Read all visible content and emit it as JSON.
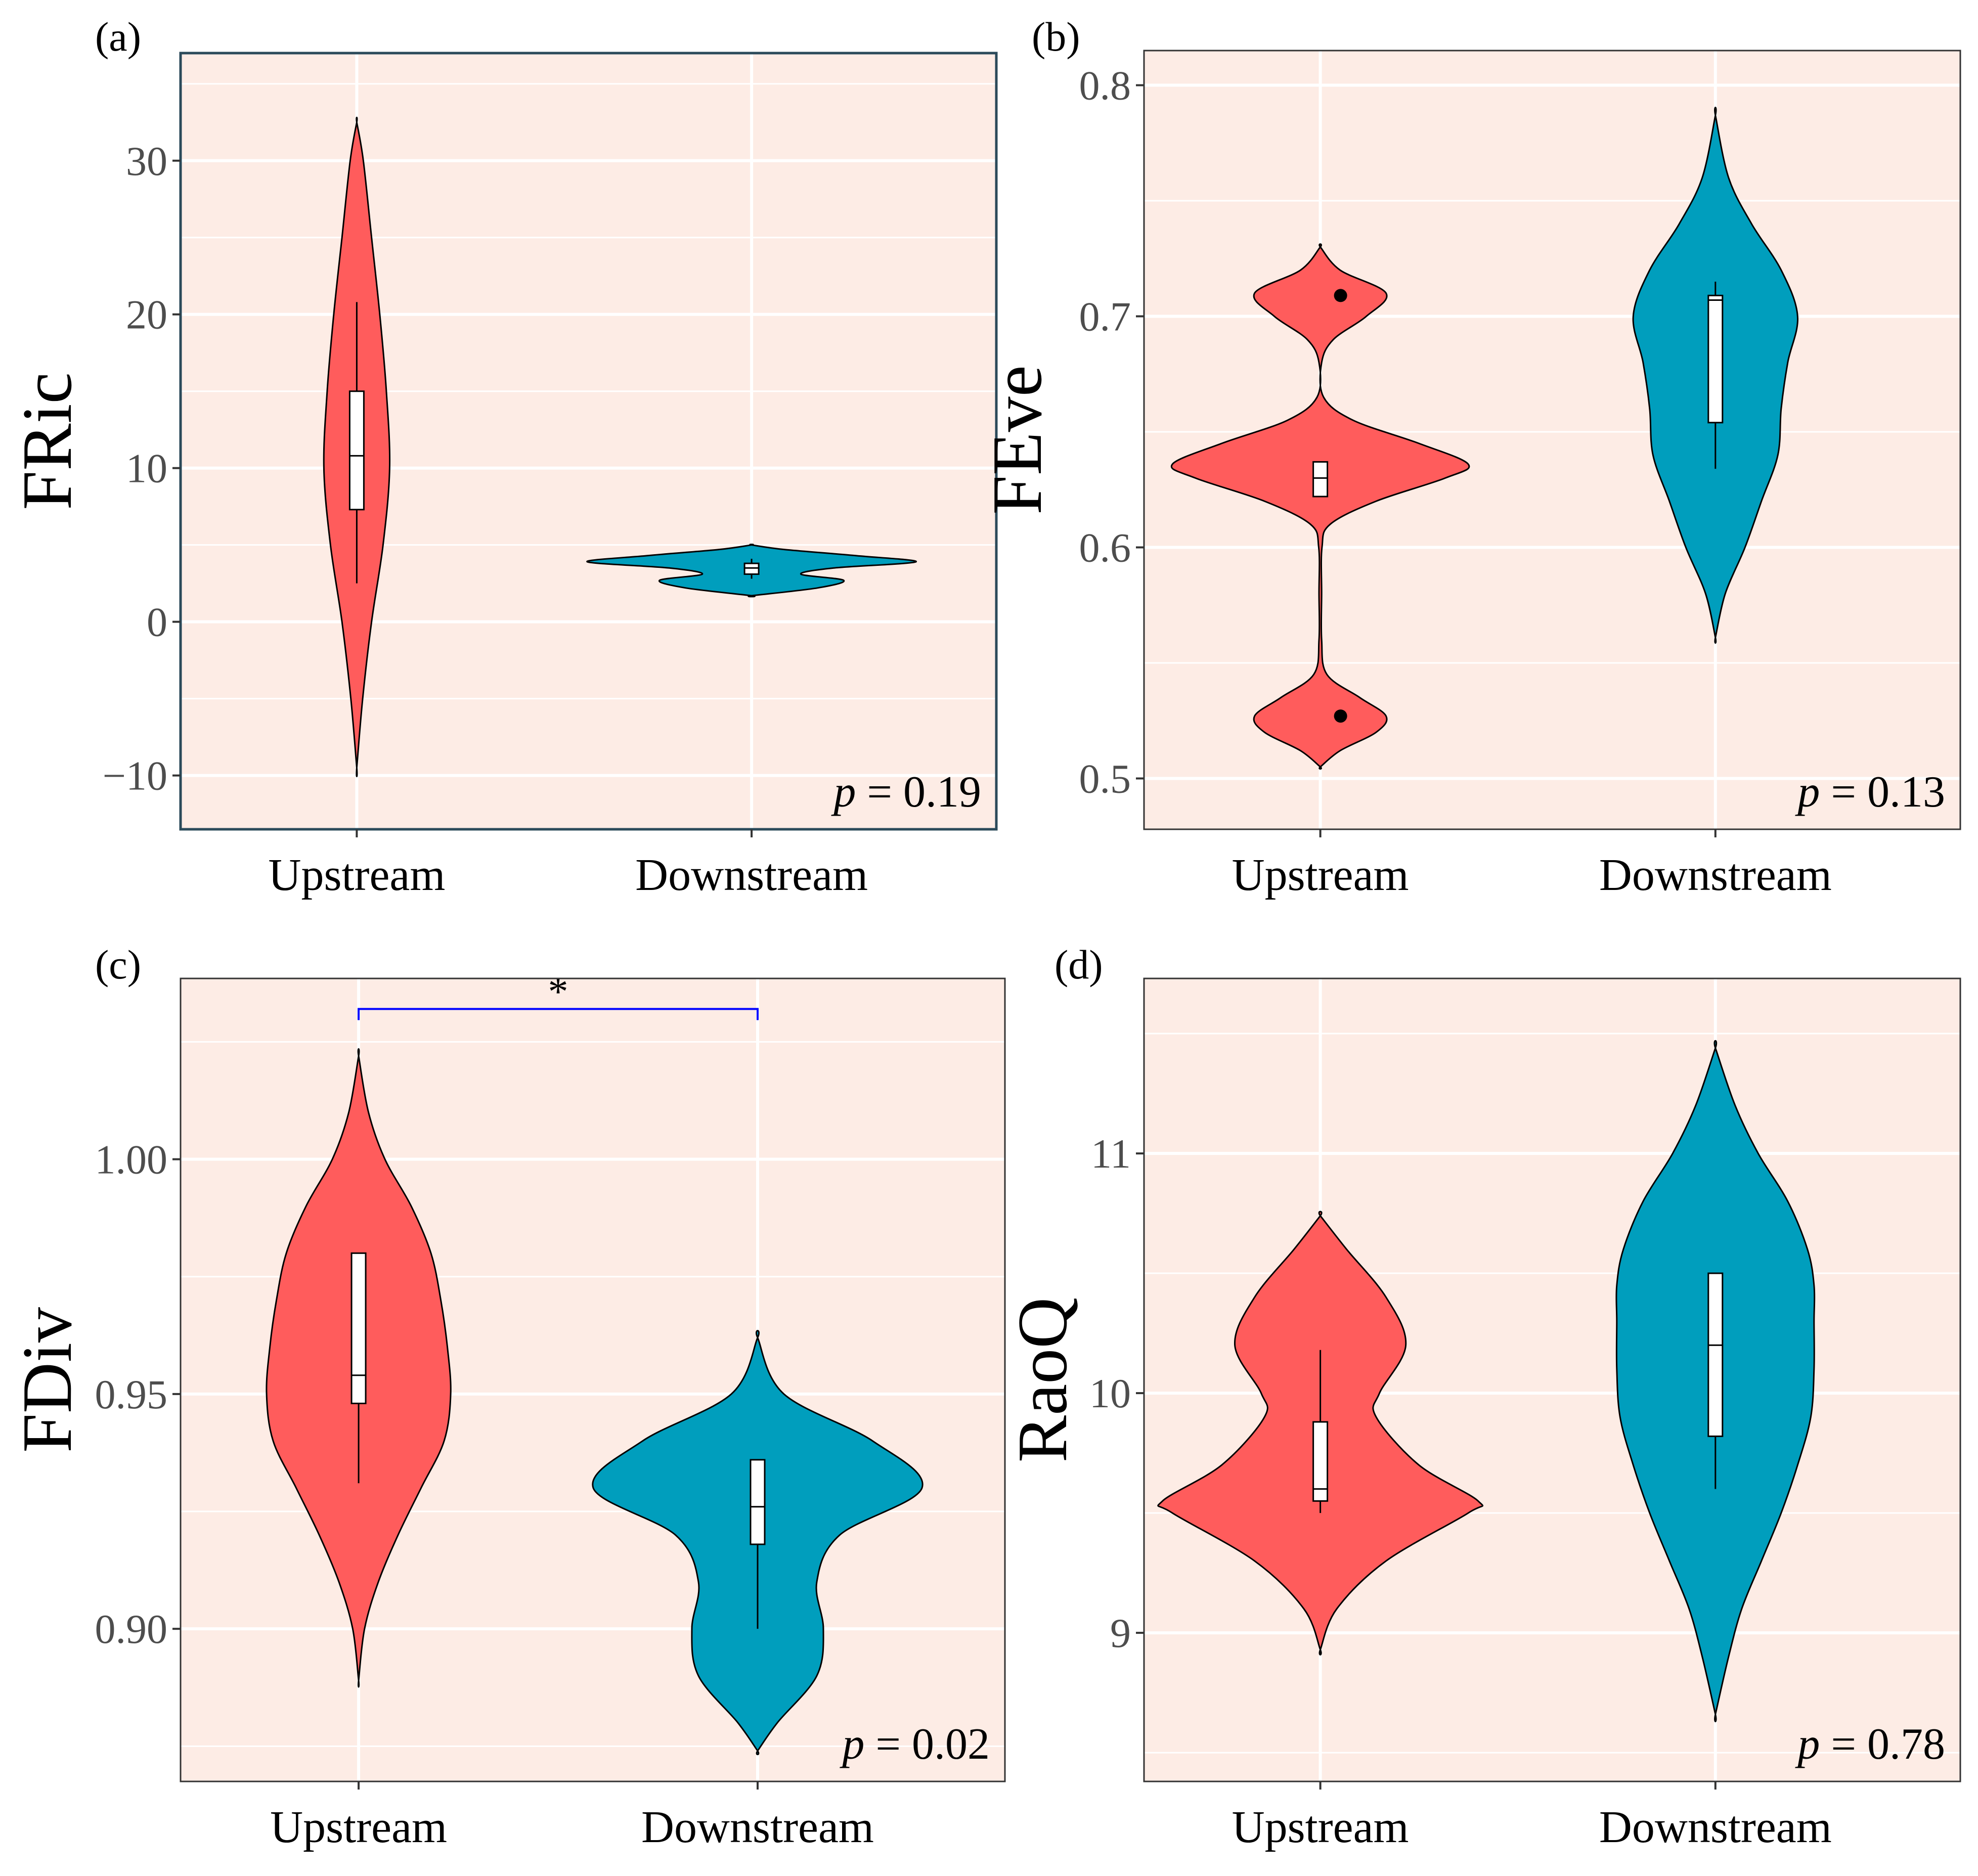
{
  "colors": {
    "upstream": "#ff5c5c",
    "downstream": "#009ebd",
    "panel_bg": "#fdece5",
    "grid": "#ffffff",
    "bracket": "#0000ff",
    "outline": "#000000"
  },
  "chart_data": [
    {
      "type": "violin",
      "panel_label": "(a)",
      "ylabel": "FRic",
      "categories": [
        "Upstream",
        "Downstream"
      ],
      "ylim": [
        -13.5,
        37
      ],
      "yticks": [
        -10,
        0,
        10,
        20,
        30
      ],
      "ytick_labels": [
        "−10",
        "0",
        "10",
        "20",
        "30"
      ],
      "p_prefix": "p",
      "p_value": "= 0.19",
      "significance": null,
      "series": [
        {
          "name": "Upstream",
          "violin_y": [
            -9.5,
            -5,
            0,
            5,
            10,
            15,
            20,
            25,
            30,
            32.5
          ],
          "violin_width": [
            0.0,
            0.018,
            0.045,
            0.08,
            0.1,
            0.09,
            0.07,
            0.045,
            0.02,
            0.0
          ],
          "box": {
            "lower_whisker": 2.5,
            "q1": 7.3,
            "median": 10.8,
            "q3": 15,
            "upper_whisker": 20.8
          },
          "outliers": []
        },
        {
          "name": "Downstream",
          "violin_y": [
            1.7,
            2.2,
            2.7,
            3.1,
            3.5,
            3.9,
            4.3,
            4.7,
            5.0
          ],
          "violin_width": [
            0.0,
            0.2,
            0.28,
            0.15,
            0.25,
            0.5,
            0.32,
            0.1,
            0.0
          ],
          "box": {
            "lower_whisker": 2.8,
            "q1": 3.1,
            "median": 3.5,
            "q3": 3.8,
            "upper_whisker": 4.1
          },
          "outliers": []
        }
      ]
    },
    {
      "type": "violin",
      "panel_label": "(b)",
      "ylabel": "FEve",
      "categories": [
        "Upstream",
        "Downstream"
      ],
      "ylim": [
        0.478,
        0.815
      ],
      "yticks": [
        0.5,
        0.6,
        0.7,
        0.8
      ],
      "ytick_labels": [
        "0.5",
        "0.6",
        "0.7",
        "0.8"
      ],
      "p_prefix": "p",
      "p_value": "= 0.13",
      "significance": null,
      "series": [
        {
          "name": "Upstream",
          "violin_y": [
            0.505,
            0.512,
            0.52,
            0.527,
            0.535,
            0.545,
            0.56,
            0.58,
            0.6,
            0.61,
            0.62,
            0.63,
            0.636,
            0.645,
            0.655,
            0.665,
            0.68,
            0.69,
            0.7,
            0.71,
            0.72,
            0.73
          ],
          "violin_width": [
            0.0,
            0.06,
            0.17,
            0.2,
            0.12,
            0.02,
            0.004,
            0.004,
            0.005,
            0.03,
            0.17,
            0.38,
            0.45,
            0.3,
            0.1,
            0.01,
            0.004,
            0.04,
            0.14,
            0.2,
            0.06,
            0.0
          ],
          "box": {
            "lower_whisker": 0.622,
            "q1": 0.622,
            "median": 0.63,
            "q3": 0.637,
            "upper_whisker": 0.637
          },
          "outliers": [
            0.527,
            0.709
          ]
        },
        {
          "name": "Downstream",
          "violin_y": [
            0.561,
            0.58,
            0.6,
            0.62,
            0.64,
            0.66,
            0.68,
            0.7,
            0.72,
            0.74,
            0.76,
            0.787
          ],
          "violin_width": [
            0.0,
            0.03,
            0.09,
            0.14,
            0.19,
            0.2,
            0.22,
            0.25,
            0.2,
            0.11,
            0.04,
            0.0
          ],
          "box": {
            "lower_whisker": 0.634,
            "q1": 0.654,
            "median": 0.707,
            "q3": 0.709,
            "upper_whisker": 0.715
          },
          "outliers": []
        }
      ]
    },
    {
      "type": "violin",
      "panel_label": "(c)",
      "ylabel": "FDiv",
      "categories": [
        "Upstream",
        "Downstream"
      ],
      "ylim": [
        0.8675,
        1.0385
      ],
      "yticks": [
        0.9,
        0.95,
        1.0
      ],
      "ytick_labels": [
        "0.90",
        "0.95",
        "1.00"
      ],
      "p_prefix": "p",
      "p_value": "= 0.02",
      "significance": {
        "label": "*",
        "y": 1.032
      },
      "series": [
        {
          "name": "Upstream",
          "violin_y": [
            0.889,
            0.9,
            0.91,
            0.92,
            0.93,
            0.94,
            0.95,
            0.96,
            0.97,
            0.98,
            0.99,
            1.0,
            1.01,
            1.022
          ],
          "violin_width": [
            0.0,
            0.018,
            0.06,
            0.12,
            0.19,
            0.26,
            0.28,
            0.27,
            0.25,
            0.22,
            0.16,
            0.08,
            0.03,
            0.0
          ],
          "box": {
            "lower_whisker": 0.931,
            "q1": 0.948,
            "median": 0.954,
            "q3": 0.98,
            "upper_whisker": 0.98
          },
          "outliers": []
        },
        {
          "name": "Downstream",
          "violin_y": [
            0.874,
            0.88,
            0.89,
            0.9,
            0.91,
            0.92,
            0.93,
            0.94,
            0.95,
            0.962
          ],
          "violin_width": [
            0.0,
            0.06,
            0.18,
            0.2,
            0.18,
            0.25,
            0.5,
            0.35,
            0.08,
            0.0
          ],
          "box": {
            "lower_whisker": 0.9,
            "q1": 0.918,
            "median": 0.926,
            "q3": 0.936,
            "upper_whisker": 0.936
          },
          "outliers": []
        }
      ]
    },
    {
      "type": "violin",
      "panel_label": "(d)",
      "ylabel": "RaoQ",
      "categories": [
        "Upstream",
        "Downstream"
      ],
      "ylim": [
        8.38,
        11.73
      ],
      "yticks": [
        9,
        10,
        11
      ],
      "ytick_labels": [
        "9",
        "10",
        "11"
      ],
      "p_prefix": "p",
      "p_value": "= 0.78",
      "significance": null,
      "series": [
        {
          "name": "Upstream",
          "violin_y": [
            8.93,
            9.1,
            9.3,
            9.5,
            9.55,
            9.7,
            9.9,
            10.0,
            10.2,
            10.4,
            10.6,
            10.74
          ],
          "violin_width": [
            0.0,
            0.05,
            0.2,
            0.45,
            0.48,
            0.3,
            0.17,
            0.18,
            0.26,
            0.2,
            0.08,
            0.0
          ],
          "box": {
            "lower_whisker": 9.5,
            "q1": 9.55,
            "median": 9.6,
            "q3": 9.88,
            "upper_whisker": 10.18
          },
          "outliers": []
        },
        {
          "name": "Downstream",
          "violin_y": [
            8.66,
            8.9,
            9.1,
            9.3,
            9.5,
            9.7,
            9.9,
            10.1,
            10.3,
            10.45,
            10.6,
            10.8,
            11.0,
            11.2,
            11.44
          ],
          "violin_width": [
            0.0,
            0.04,
            0.08,
            0.14,
            0.2,
            0.25,
            0.29,
            0.3,
            0.3,
            0.3,
            0.28,
            0.22,
            0.13,
            0.06,
            0.0
          ],
          "box": {
            "lower_whisker": 9.6,
            "q1": 9.82,
            "median": 10.2,
            "q3": 10.5,
            "upper_whisker": 10.5
          },
          "outliers": []
        }
      ]
    }
  ]
}
